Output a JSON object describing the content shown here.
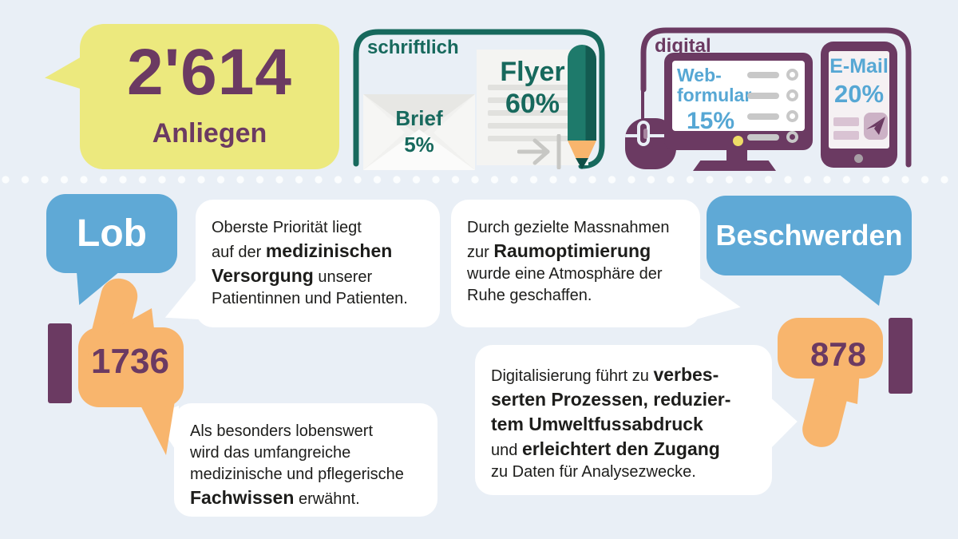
{
  "palette": {
    "background": "#e9eff6",
    "purple": "#6b3a62",
    "teal": "#17695d",
    "teal_dark": "#0f5a4f",
    "blue_bubble": "#5fa9d6",
    "blue_text": "#56a7d4",
    "yellow": "#ece97e",
    "orange": "#f8b56d",
    "white": "#ffffff"
  },
  "icons": {
    "envelope": "✉",
    "flyer_document": "▤",
    "pencil": "✏",
    "indent_arrow": "⇥",
    "computer_mouse": "🖱",
    "monitor": "🖥",
    "tablet": "📱",
    "paper_plane": "✈",
    "thumbs_up": "👍",
    "thumbs_down": "👎",
    "speech_bubble": "💬"
  },
  "header": {
    "total": {
      "value": "2'614",
      "label": "Anliegen"
    },
    "channels_written": {
      "title": "schriftlich",
      "items": [
        {
          "label": "Brief",
          "value": "5%"
        },
        {
          "label": "Flyer",
          "value": "60%"
        }
      ]
    },
    "channels_digital": {
      "title": "digital",
      "items": [
        {
          "label": "Web-formular",
          "label_line1": "Web-",
          "label_line2": "formular",
          "value": "15%"
        },
        {
          "label": "E-Mail",
          "value": "20%"
        }
      ]
    }
  },
  "feedback": {
    "praise": {
      "label": "Lob",
      "count": "1736"
    },
    "complaints": {
      "label": "Beschwerden",
      "count": "878"
    },
    "notes": [
      {
        "runs": [
          {
            "t": "Oberste Priorität liegt"
          },
          {
            "br": true
          },
          {
            "t": "auf der "
          },
          {
            "t": "medizinischen",
            "b": true
          },
          {
            "br": true
          },
          {
            "t": "Versorgung",
            "b": true
          },
          {
            "t": " unserer"
          },
          {
            "br": true
          },
          {
            "t": "Patientinnen und Patienten."
          }
        ]
      },
      {
        "runs": [
          {
            "t": "Durch gezielte Massnahmen"
          },
          {
            "br": true
          },
          {
            "t": "zur "
          },
          {
            "t": "Raumoptimierung",
            "b": true
          },
          {
            "br": true
          },
          {
            "t": "wurde eine Atmosphäre der"
          },
          {
            "br": true
          },
          {
            "t": "Ruhe geschaffen."
          }
        ]
      },
      {
        "runs": [
          {
            "t": "Als besonders lobenswert"
          },
          {
            "br": true
          },
          {
            "t": "wird das umfangreiche"
          },
          {
            "br": true
          },
          {
            "t": "medizinische und pflegerische"
          },
          {
            "br": true
          },
          {
            "t": "Fachwissen",
            "b": true
          },
          {
            "t": " erwähnt."
          }
        ]
      },
      {
        "runs": [
          {
            "t": "Digitalisierung führt zu "
          },
          {
            "t": "verbes-",
            "b": true
          },
          {
            "br": true
          },
          {
            "t": "serten Prozessen, reduzier-",
            "b": true
          },
          {
            "br": true
          },
          {
            "t": "tem Umweltfussabdruck",
            "b": true
          },
          {
            "br": true
          },
          {
            "t": "und "
          },
          {
            "t": "erleichtert den Zugang",
            "b": true
          },
          {
            "br": true
          },
          {
            "t": "zu Daten für Analysezwecke."
          }
        ]
      }
    ]
  },
  "chart_data": [
    {
      "type": "pie",
      "title": "2'614 Anliegen — Eingangskanäle",
      "labels": [
        "Brief",
        "Flyer",
        "Web-formular",
        "E-Mail"
      ],
      "values": [
        5,
        60,
        15,
        20
      ],
      "groups": {
        "schriftlich": [
          "Brief",
          "Flyer"
        ],
        "digital": [
          "Web-formular",
          "E-Mail"
        ]
      }
    },
    {
      "type": "bar",
      "title": "Lob vs. Beschwerden",
      "categories": [
        "Lob",
        "Beschwerden"
      ],
      "values": [
        1736,
        878
      ]
    }
  ]
}
